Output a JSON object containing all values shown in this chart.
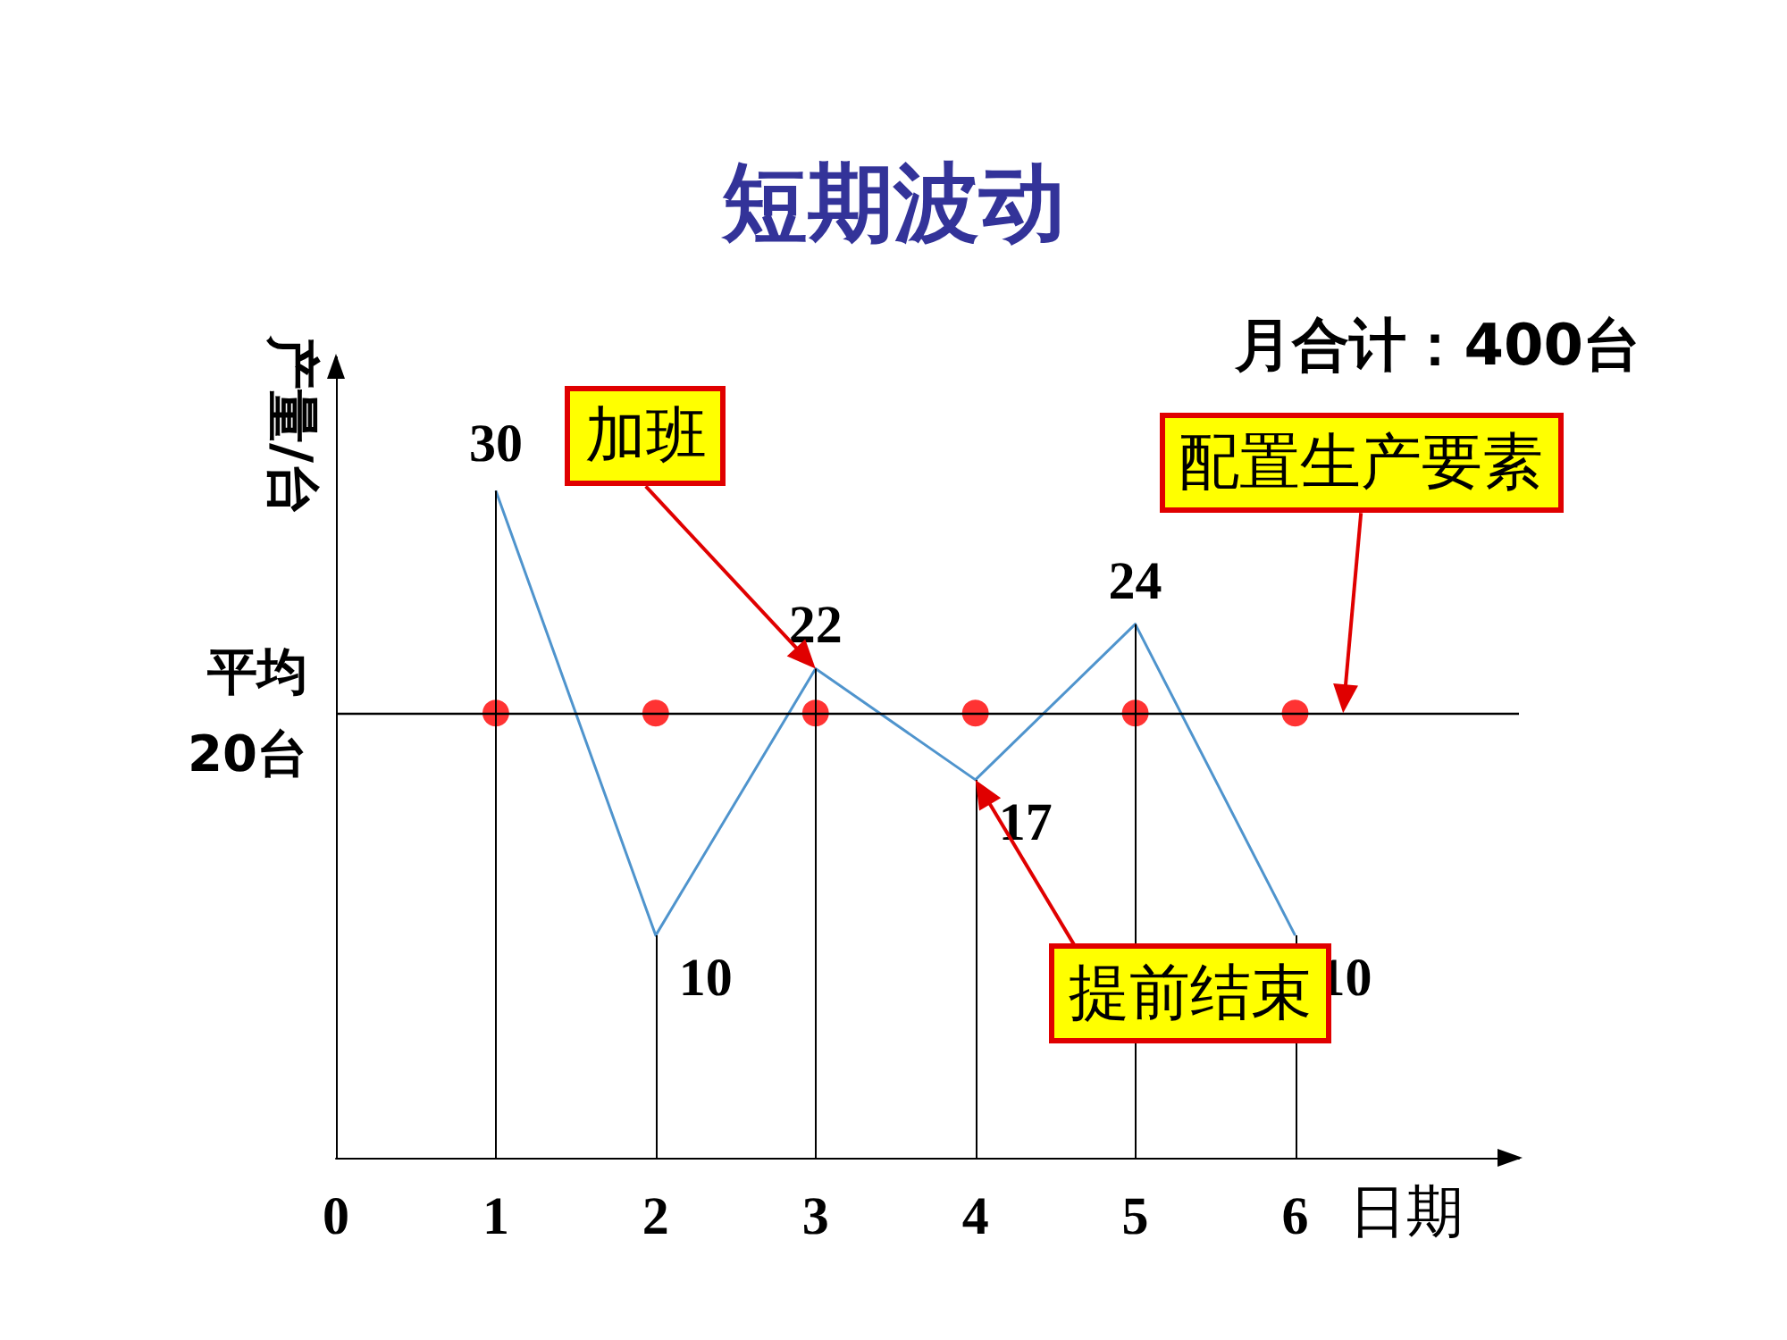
{
  "chart_data": {
    "type": "line",
    "title": "短期波动",
    "xlabel": "日期",
    "ylabel": "产量/台",
    "x": [
      1,
      2,
      3,
      4,
      5,
      6
    ],
    "series": [
      {
        "color": "#4f94cd",
        "values": [
          30,
          10,
          22,
          17,
          24,
          10
        ],
        "value_labels": [
          "30",
          "10",
          "22",
          "17",
          "24",
          "10"
        ]
      },
      {
        "type": "scatter",
        "color": "#ff0000",
        "x": [
          1,
          2,
          3,
          4,
          5,
          6
        ],
        "values": [
          20,
          20,
          20,
          20,
          20,
          20
        ]
      }
    ],
    "xlim": [
      0,
      7.4
    ],
    "xticks": [
      0,
      1,
      2,
      3,
      4,
      5,
      6
    ],
    "ylim": [
      0,
      36
    ],
    "tick_labels": "x",
    "grid": "x",
    "ref_lines": [
      {
        "axis": "y",
        "value": 20,
        "label": "平均\n20台",
        "color": "#000000"
      }
    ],
    "annotations": [
      "月合计：400台",
      "加班",
      "配置生产要素",
      "提前结束"
    ]
  }
}
